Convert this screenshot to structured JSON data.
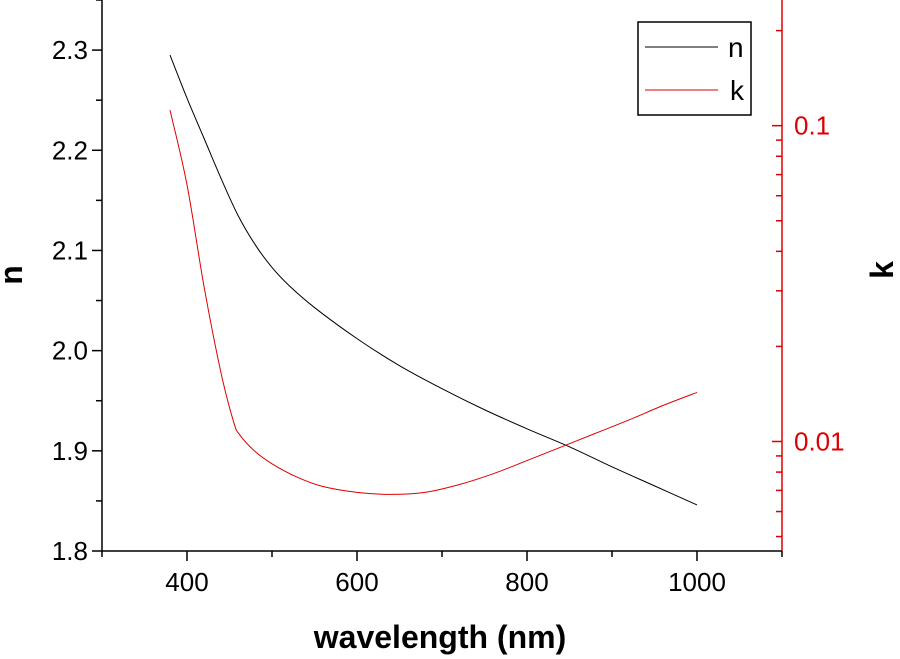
{
  "chart_data": {
    "type": "line",
    "xlabel": "wavelength (nm)",
    "ylabel": "n",
    "y2label": "k",
    "xlim": [
      300,
      1100
    ],
    "ylim": [
      1.8,
      2.35
    ],
    "y2lim": [
      0.0045,
      0.25
    ],
    "y2scale": "log",
    "x_ticks": [
      "400",
      "600",
      "800",
      "1000"
    ],
    "y_ticks": [
      "1.8",
      "1.9",
      "2.0",
      "2.1",
      "2.2",
      "2.3"
    ],
    "y2_ticks": [
      "0.01",
      "0.1"
    ],
    "legend_position": "top-right",
    "colors": {
      "n": "#000000",
      "k": "#dd0000"
    },
    "series": [
      {
        "name": "n",
        "axis": "left",
        "x": [
          380,
          400,
          420,
          440,
          460,
          480,
          500,
          520,
          550,
          600,
          650,
          700,
          750,
          800,
          850,
          900,
          950,
          1000
        ],
        "y": [
          2.295,
          2.252,
          2.212,
          2.172,
          2.135,
          2.106,
          2.083,
          2.065,
          2.043,
          2.012,
          1.985,
          1.962,
          1.941,
          1.922,
          1.904,
          1.884,
          1.865,
          1.846
        ]
      },
      {
        "name": "k",
        "axis": "right",
        "x": [
          380,
          400,
          420,
          440,
          455,
          462,
          480,
          500,
          530,
          560,
          600,
          640,
          680,
          720,
          760,
          800,
          840,
          880,
          920,
          960,
          1000
        ],
        "y": [
          0.112,
          0.065,
          0.031,
          0.0165,
          0.0115,
          0.0105,
          0.0093,
          0.0085,
          0.0077,
          0.0072,
          0.0069,
          0.0068,
          0.0069,
          0.0073,
          0.0079,
          0.0087,
          0.0096,
          0.0106,
          0.0117,
          0.013,
          0.0143
        ]
      }
    ]
  }
}
